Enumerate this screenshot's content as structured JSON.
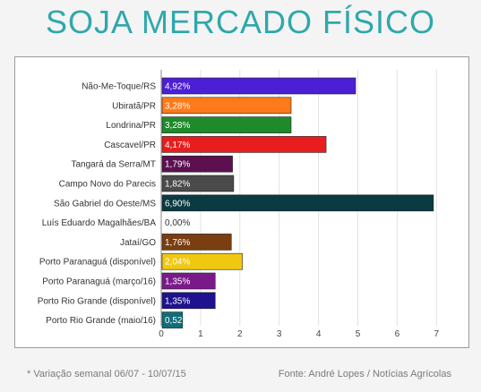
{
  "title": "SOJA MERCADO FÍSICO",
  "footnote": "* Variação semanal 06/07 - 10/07/15",
  "source": "Fonte: André Lopes / Notícias Agrícolas",
  "chart_data": {
    "type": "bar",
    "orientation": "horizontal",
    "title": "",
    "xlabel": "",
    "ylabel": "",
    "xlim": [
      0,
      7.5
    ],
    "ticks": [
      "0",
      "1",
      "2",
      "3",
      "4",
      "5",
      "6",
      "7"
    ],
    "grid": true,
    "categories": [
      "Não-Me-Toque/RS",
      "Ubiratã/PR",
      "Londrina/PR",
      "Cascavel/PR",
      "Tangará da Serra/MT",
      "Campo Novo do Parecis",
      "São Gabriel do Oeste/MS",
      "Luís Eduardo Magalhães/BA",
      "Jataí/GO",
      "Porto Paranaguá (disponível)",
      "Porto Paranaguá (março/16)",
      "Porto Rio Grande (disponível)",
      "Porto Rio Grande (maio/16)"
    ],
    "values": [
      4.92,
      3.28,
      3.28,
      4.17,
      1.79,
      1.82,
      6.9,
      0.0,
      1.76,
      2.04,
      1.35,
      1.35,
      0.52
    ],
    "labels": [
      "4,92%",
      "3,28%",
      "3,28%",
      "4,17%",
      "1,79%",
      "1,82%",
      "6,90%",
      "0,00%",
      "1,76%",
      "2,04%",
      "1,35%",
      "1,35%",
      "0,52"
    ],
    "colors": [
      "#4b1fd4",
      "#ff7a1a",
      "#1f8a2a",
      "#e81e1e",
      "#5c1050",
      "#4a4a4a",
      "#0a3a42",
      "#cccccc",
      "#7a3e10",
      "#f0c810",
      "#7a1a8a",
      "#1f128f",
      "#0f6e7a"
    ]
  }
}
